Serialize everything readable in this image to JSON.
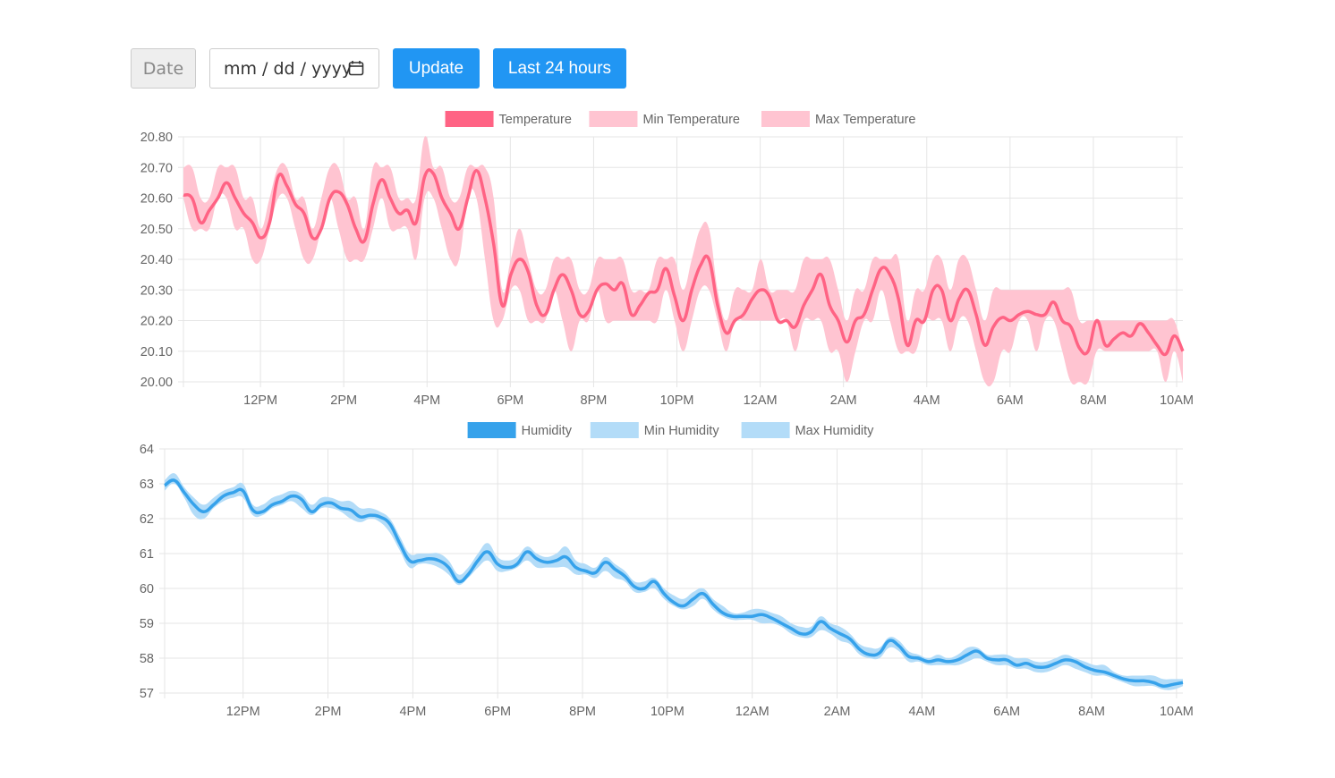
{
  "controls": {
    "date_label": "Date",
    "date_placeholder": "mm / dd / yyyy",
    "update_label": "Update",
    "last24_label": "Last 24 hours"
  },
  "chart_data": [
    {
      "type": "line",
      "ylim": [
        20.0,
        20.8
      ],
      "yticks": [
        "20.00",
        "20.10",
        "20.20",
        "20.30",
        "20.40",
        "20.50",
        "20.60",
        "20.70",
        "20.80"
      ],
      "xticks": [
        "12PM",
        "2PM",
        "4PM",
        "6PM",
        "8PM",
        "10PM",
        "12AM",
        "2AM",
        "4AM",
        "6AM",
        "8AM",
        "10AM"
      ],
      "x_start_hour": 10.15,
      "x_end_hour": 34.15,
      "grid": true,
      "legend_position": "top-center",
      "legend": [
        "Temperature",
        "Min Temperature",
        "Max Temperature"
      ],
      "colors": {
        "line": "#ff6384",
        "band": "#ffc4d1"
      },
      "series": [
        {
          "name": "Temperature",
          "values": [
            20.61,
            20.6,
            20.52,
            20.56,
            20.6,
            20.65,
            20.6,
            20.55,
            20.52,
            20.47,
            20.52,
            20.67,
            20.64,
            20.58,
            20.55,
            20.47,
            20.5,
            20.6,
            20.62,
            20.58,
            20.5,
            20.46,
            20.58,
            20.66,
            20.6,
            20.55,
            20.56,
            20.52,
            20.67,
            20.68,
            20.6,
            20.55,
            20.5,
            20.6,
            20.69,
            20.6,
            20.45,
            20.25,
            20.35,
            20.4,
            20.36,
            20.25,
            20.22,
            20.3,
            20.35,
            20.3,
            20.22,
            20.23,
            20.3,
            20.32,
            20.3,
            20.32,
            20.22,
            20.25,
            20.29,
            20.3,
            20.37,
            20.28,
            20.2,
            20.3,
            20.38,
            20.4,
            20.25,
            20.16,
            20.2,
            20.22,
            20.27,
            20.3,
            20.28,
            20.2,
            20.2,
            20.18,
            20.25,
            20.3,
            20.35,
            20.25,
            20.2,
            20.13,
            20.2,
            20.22,
            20.3,
            20.37,
            20.35,
            20.27,
            20.12,
            20.2,
            20.2,
            20.3,
            20.3,
            20.2,
            20.27,
            20.3,
            20.22,
            20.12,
            20.18,
            20.21,
            20.2,
            20.22,
            20.23,
            20.22,
            20.22,
            20.26,
            20.2,
            20.18,
            20.11,
            20.1,
            20.2,
            20.12,
            20.14,
            20.16,
            20.15,
            20.19,
            20.16,
            20.12,
            20.09,
            20.15,
            20.1
          ]
        },
        {
          "name": "Min Temperature",
          "values": [
            20.6,
            20.5,
            20.5,
            20.5,
            20.6,
            20.6,
            20.5,
            20.5,
            20.4,
            20.4,
            20.5,
            20.6,
            20.6,
            20.5,
            20.4,
            20.4,
            20.5,
            20.6,
            20.5,
            20.4,
            20.4,
            20.4,
            20.5,
            20.6,
            20.5,
            20.5,
            20.5,
            20.4,
            20.6,
            20.6,
            20.5,
            20.4,
            20.4,
            20.6,
            20.6,
            20.4,
            20.2,
            20.2,
            20.3,
            20.3,
            20.2,
            20.2,
            20.2,
            20.3,
            20.2,
            20.1,
            20.2,
            20.2,
            20.3,
            20.2,
            20.2,
            20.2,
            20.2,
            20.2,
            20.2,
            20.2,
            20.3,
            20.2,
            20.1,
            20.2,
            20.3,
            20.3,
            20.2,
            20.1,
            20.2,
            20.2,
            20.2,
            20.2,
            20.2,
            20.2,
            20.2,
            20.1,
            20.2,
            20.2,
            20.2,
            20.1,
            20.1,
            20.0,
            20.1,
            20.2,
            20.2,
            20.3,
            20.2,
            20.1,
            20.1,
            20.1,
            20.2,
            20.2,
            20.2,
            20.1,
            20.2,
            20.2,
            20.1,
            20.0,
            20.0,
            20.1,
            20.1,
            20.2,
            20.2,
            20.1,
            20.2,
            20.2,
            20.1,
            20.0,
            20.0,
            20.0,
            20.1,
            20.1,
            20.1,
            20.1,
            20.1,
            20.1,
            20.1,
            20.1,
            20.0,
            20.1,
            20.0
          ]
        },
        {
          "name": "Max Temperature",
          "values": [
            20.7,
            20.7,
            20.6,
            20.6,
            20.7,
            20.7,
            20.7,
            20.6,
            20.6,
            20.5,
            20.6,
            20.7,
            20.7,
            20.6,
            20.6,
            20.5,
            20.6,
            20.7,
            20.7,
            20.6,
            20.6,
            20.5,
            20.7,
            20.7,
            20.7,
            20.6,
            20.6,
            20.6,
            20.8,
            20.7,
            20.7,
            20.6,
            20.6,
            20.7,
            20.7,
            20.7,
            20.6,
            20.3,
            20.4,
            20.5,
            20.4,
            20.3,
            20.3,
            20.4,
            20.4,
            20.4,
            20.3,
            20.3,
            20.4,
            20.4,
            20.4,
            20.4,
            20.3,
            20.3,
            20.3,
            20.4,
            20.4,
            20.4,
            20.3,
            20.4,
            20.5,
            20.5,
            20.3,
            20.2,
            20.3,
            20.3,
            20.3,
            20.4,
            20.3,
            20.3,
            20.3,
            20.3,
            20.4,
            20.4,
            20.4,
            20.4,
            20.3,
            20.2,
            20.3,
            20.3,
            20.4,
            20.4,
            20.4,
            20.4,
            20.2,
            20.3,
            20.3,
            20.4,
            20.4,
            20.3,
            20.4,
            20.4,
            20.3,
            20.2,
            20.3,
            20.3,
            20.3,
            20.3,
            20.3,
            20.3,
            20.3,
            20.3,
            20.3,
            20.3,
            20.2,
            20.2,
            20.2,
            20.2,
            20.2,
            20.2,
            20.2,
            20.2,
            20.2,
            20.2,
            20.2,
            20.2,
            20.1
          ]
        }
      ]
    },
    {
      "type": "line",
      "ylim": [
        57,
        64
      ],
      "yticks": [
        "57",
        "58",
        "59",
        "60",
        "61",
        "62",
        "63",
        "64"
      ],
      "xticks": [
        "12PM",
        "2PM",
        "4PM",
        "6PM",
        "8PM",
        "10PM",
        "12AM",
        "2AM",
        "4AM",
        "6AM",
        "8AM",
        "10AM"
      ],
      "x_start_hour": 10.15,
      "x_end_hour": 34.15,
      "grid": true,
      "legend_position": "top-center",
      "legend": [
        "Humidity",
        "Min Humidity",
        "Max Humidity"
      ],
      "colors": {
        "line": "#36a2eb",
        "band": "#b3dcf8"
      },
      "series": [
        {
          "name": "Humidity",
          "values": [
            62.95,
            63.1,
            62.75,
            62.4,
            62.2,
            62.4,
            62.65,
            62.75,
            62.8,
            62.25,
            62.2,
            62.4,
            62.5,
            62.65,
            62.55,
            62.2,
            62.4,
            62.45,
            62.3,
            62.25,
            62.05,
            62.1,
            62.05,
            61.85,
            61.3,
            60.8,
            60.8,
            60.85,
            60.8,
            60.6,
            60.2,
            60.4,
            60.8,
            61.05,
            60.7,
            60.6,
            60.7,
            61.05,
            60.85,
            60.75,
            60.8,
            60.9,
            60.6,
            60.5,
            60.45,
            60.75,
            60.55,
            60.35,
            60.05,
            60.0,
            60.2,
            59.85,
            59.6,
            59.5,
            59.7,
            59.85,
            59.55,
            59.3,
            59.2,
            59.2,
            59.2,
            59.25,
            59.15,
            59.0,
            58.85,
            58.7,
            58.75,
            59.05,
            58.85,
            58.7,
            58.55,
            58.25,
            58.1,
            58.15,
            58.5,
            58.35,
            58.05,
            58.0,
            57.9,
            57.95,
            57.9,
            57.95,
            58.1,
            58.2,
            58.0,
            57.95,
            57.95,
            57.8,
            57.85,
            57.75,
            57.75,
            57.85,
            57.95,
            57.9,
            57.75,
            57.65,
            57.6,
            57.5,
            57.4,
            57.35,
            57.35,
            57.3,
            57.2,
            57.25,
            57.3
          ]
        },
        {
          "name": "Min Humidity",
          "values": [
            62.8,
            63.0,
            62.6,
            62.1,
            62.0,
            62.3,
            62.5,
            62.6,
            62.6,
            62.1,
            62.1,
            62.3,
            62.4,
            62.5,
            62.3,
            62.1,
            62.3,
            62.3,
            62.2,
            62.0,
            61.9,
            62.0,
            61.9,
            61.6,
            61.1,
            60.6,
            60.7,
            60.7,
            60.6,
            60.4,
            60.1,
            60.3,
            60.6,
            60.8,
            60.5,
            60.5,
            60.6,
            60.8,
            60.6,
            60.6,
            60.6,
            60.6,
            60.4,
            60.4,
            60.3,
            60.5,
            60.3,
            60.2,
            59.9,
            59.9,
            60.0,
            59.7,
            59.5,
            59.4,
            59.5,
            59.7,
            59.4,
            59.2,
            59.1,
            59.1,
            59.1,
            59.0,
            59.0,
            58.9,
            58.7,
            58.6,
            58.6,
            58.8,
            58.7,
            58.5,
            58.4,
            58.1,
            58.0,
            58.0,
            58.3,
            58.2,
            57.9,
            57.9,
            57.8,
            57.8,
            57.8,
            57.8,
            57.9,
            58.0,
            57.9,
            57.8,
            57.8,
            57.7,
            57.7,
            57.6,
            57.6,
            57.7,
            57.8,
            57.7,
            57.6,
            57.5,
            57.5,
            57.4,
            57.3,
            57.2,
            57.2,
            57.2,
            57.1,
            57.1,
            57.2
          ]
        },
        {
          "name": "Max Humidity",
          "values": [
            63.1,
            63.3,
            62.9,
            62.6,
            62.4,
            62.6,
            62.8,
            62.9,
            63.0,
            62.4,
            62.4,
            62.6,
            62.7,
            62.8,
            62.7,
            62.4,
            62.6,
            62.6,
            62.5,
            62.5,
            62.3,
            62.3,
            62.2,
            62.0,
            61.5,
            61.0,
            61.0,
            61.0,
            61.0,
            60.8,
            60.4,
            60.6,
            61.0,
            61.3,
            60.9,
            60.8,
            60.9,
            61.2,
            61.0,
            60.9,
            61.0,
            61.2,
            60.8,
            60.7,
            60.6,
            60.9,
            60.7,
            60.5,
            60.2,
            60.2,
            60.3,
            60.0,
            59.8,
            59.7,
            59.9,
            60.0,
            59.7,
            59.5,
            59.3,
            59.3,
            59.4,
            59.4,
            59.3,
            59.2,
            59.0,
            58.9,
            58.9,
            59.2,
            59.0,
            58.9,
            58.7,
            58.4,
            58.3,
            58.3,
            58.6,
            58.5,
            58.2,
            58.1,
            58.0,
            58.1,
            58.0,
            58.1,
            58.3,
            58.3,
            58.1,
            58.1,
            58.1,
            58.0,
            58.0,
            57.9,
            57.9,
            58.0,
            58.1,
            58.0,
            57.9,
            57.8,
            57.8,
            57.6,
            57.5,
            57.5,
            57.5,
            57.5,
            57.4,
            57.4,
            57.4
          ]
        }
      ]
    }
  ]
}
